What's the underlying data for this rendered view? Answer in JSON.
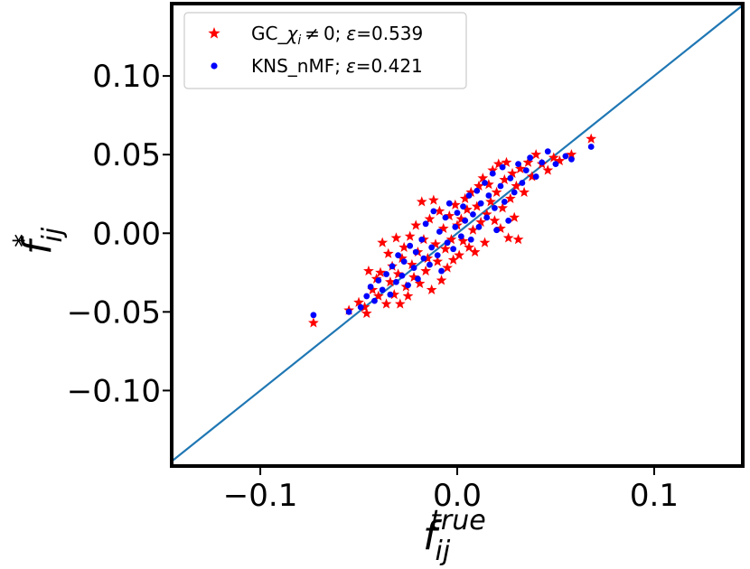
{
  "chart_data": {
    "type": "scatter",
    "xlabel": {
      "base": "f",
      "sub": "ij",
      "sup": "true"
    },
    "ylabel": {
      "base": "f",
      "sub": "ij",
      "sup": "*"
    },
    "xlim": [
      -0.145,
      0.145
    ],
    "ylim": [
      -0.148,
      0.146
    ],
    "x_ticks": [
      -0.1,
      0.0,
      0.1
    ],
    "x_tick_labels": [
      "−0.1",
      "0.0",
      "0.1"
    ],
    "y_ticks": [
      0.1,
      0.05,
      0.0,
      -0.05,
      -0.1
    ],
    "y_tick_labels": [
      "0.10",
      "0.05",
      "0.00",
      "−0.05",
      "−0.10"
    ],
    "legend_position": "top-left",
    "reference_line": {
      "slope": 1,
      "intercept": 0,
      "color": "#1f77b4"
    },
    "series": [
      {
        "name": "GC_χ_i ≠ 0; ε=0.539",
        "label_parts": {
          "prefix": "GC_",
          "chi": "χ",
          "sub": "i",
          "rest": " ≠ 0;",
          "eps": "ε",
          "value": "=0.539"
        },
        "marker": "star",
        "color": "#ff0000",
        "points": [
          [
            -0.073,
            -0.057
          ],
          [
            -0.055,
            -0.049
          ],
          [
            -0.05,
            -0.044
          ],
          [
            -0.047,
            -0.047
          ],
          [
            -0.046,
            -0.051
          ],
          [
            -0.045,
            -0.024
          ],
          [
            -0.043,
            -0.036
          ],
          [
            -0.041,
            -0.029
          ],
          [
            -0.04,
            -0.04
          ],
          [
            -0.039,
            -0.025
          ],
          [
            -0.038,
            -0.006
          ],
          [
            -0.036,
            -0.045
          ],
          [
            -0.035,
            -0.013
          ],
          [
            -0.034,
            -0.031
          ],
          [
            -0.033,
            -0.021
          ],
          [
            -0.032,
            -0.039
          ],
          [
            -0.031,
            -0.003
          ],
          [
            -0.03,
            -0.026
          ],
          [
            -0.029,
            -0.045
          ],
          [
            -0.028,
            -0.016
          ],
          [
            -0.027,
            -0.009
          ],
          [
            -0.026,
            -0.034
          ],
          [
            -0.025,
            -0.04
          ],
          [
            -0.024,
            -0.002
          ],
          [
            -0.023,
            -0.02
          ],
          [
            -0.022,
            -0.028
          ],
          [
            -0.021,
            0.005
          ],
          [
            -0.02,
            -0.012
          ],
          [
            -0.019,
            -0.032
          ],
          [
            -0.018,
            0.02
          ],
          [
            -0.017,
            -0.004
          ],
          [
            -0.016,
            -0.024
          ],
          [
            -0.015,
            -0.016
          ],
          [
            -0.014,
            0.009
          ],
          [
            -0.013,
            -0.036
          ],
          [
            -0.012,
            0.021
          ],
          [
            -0.011,
            -0.007
          ],
          [
            -0.01,
            -0.018
          ],
          [
            -0.009,
            0.014
          ],
          [
            -0.008,
            -0.03
          ],
          [
            -0.007,
            0.003
          ],
          [
            -0.006,
            -0.01
          ],
          [
            -0.005,
            -0.022
          ],
          [
            -0.004,
            0.011
          ],
          [
            -0.003,
            -0.004
          ],
          [
            -0.002,
            -0.017
          ],
          [
            -0.001,
            0.018
          ],
          [
            0.0,
            0.005
          ],
          [
            0.001,
            -0.014
          ],
          [
            0.002,
            0.009
          ],
          [
            0.003,
            -0.005
          ],
          [
            0.004,
            0.022
          ],
          [
            0.005,
            0.015
          ],
          [
            0.006,
            -0.009
          ],
          [
            0.007,
            0.026
          ],
          [
            0.008,
            0.002
          ],
          [
            0.009,
            -0.012
          ],
          [
            0.01,
            0.017
          ],
          [
            0.011,
            0.03
          ],
          [
            0.012,
            0.007
          ],
          [
            0.013,
            0.035
          ],
          [
            0.014,
            -0.006
          ],
          [
            0.015,
            0.012
          ],
          [
            0.016,
            0.031
          ],
          [
            0.017,
            0.02
          ],
          [
            0.018,
            0.04
          ],
          [
            0.019,
            0.008
          ],
          [
            0.02,
            0.026
          ],
          [
            0.021,
            0.044
          ],
          [
            0.022,
            0.003
          ],
          [
            0.023,
            0.016
          ],
          [
            0.024,
            0.034
          ],
          [
            0.025,
            0.045
          ],
          [
            0.026,
            -0.003
          ],
          [
            0.027,
            0.022
          ],
          [
            0.028,
            0.038
          ],
          [
            0.029,
            0.01
          ],
          [
            0.03,
            0.03
          ],
          [
            0.031,
            -0.004
          ],
          [
            0.032,
            0.041
          ],
          [
            0.034,
            0.026
          ],
          [
            0.036,
            0.045
          ],
          [
            0.038,
            0.036
          ],
          [
            0.04,
            0.05
          ],
          [
            0.043,
            0.044
          ],
          [
            0.046,
            0.04
          ],
          [
            0.049,
            0.048
          ],
          [
            0.052,
            0.046
          ],
          [
            0.058,
            0.05
          ],
          [
            0.068,
            0.06
          ]
        ]
      },
      {
        "name": "KNS_nMF; ε=0.421",
        "label_parts": {
          "prefix": "KNS_nMF;",
          "eps": "ε",
          "value": "=0.421"
        },
        "marker": "circle",
        "color": "#0000ff",
        "points": [
          [
            -0.073,
            -0.052
          ],
          [
            -0.055,
            -0.05
          ],
          [
            -0.049,
            -0.047
          ],
          [
            -0.046,
            -0.04
          ],
          [
            -0.044,
            -0.034
          ],
          [
            -0.042,
            -0.043
          ],
          [
            -0.04,
            -0.03
          ],
          [
            -0.038,
            -0.036
          ],
          [
            -0.036,
            -0.026
          ],
          [
            -0.034,
            -0.039
          ],
          [
            -0.033,
            -0.021
          ],
          [
            -0.031,
            -0.031
          ],
          [
            -0.03,
            -0.014
          ],
          [
            -0.028,
            -0.027
          ],
          [
            -0.027,
            -0.018
          ],
          [
            -0.025,
            -0.033
          ],
          [
            -0.024,
            -0.008
          ],
          [
            -0.022,
            -0.022
          ],
          [
            -0.021,
            -0.012
          ],
          [
            -0.02,
            -0.029
          ],
          [
            -0.018,
            -0.004
          ],
          [
            -0.017,
            -0.016
          ],
          [
            -0.016,
            0.006
          ],
          [
            -0.014,
            -0.02
          ],
          [
            -0.013,
            -0.009
          ],
          [
            -0.012,
            0.014
          ],
          [
            -0.01,
            -0.014
          ],
          [
            -0.009,
            0.001
          ],
          [
            -0.008,
            -0.024
          ],
          [
            -0.006,
            0.01
          ],
          [
            -0.005,
            -0.006
          ],
          [
            -0.004,
            0.019
          ],
          [
            -0.002,
            -0.01
          ],
          [
            -0.001,
            0.004
          ],
          [
            0.0,
            0.013
          ],
          [
            0.002,
            -0.002
          ],
          [
            0.003,
            0.017
          ],
          [
            0.004,
            0.008
          ],
          [
            0.006,
            0.024
          ],
          [
            0.007,
            -0.004
          ],
          [
            0.008,
            0.012
          ],
          [
            0.01,
            0.027
          ],
          [
            0.011,
            0.004
          ],
          [
            0.012,
            0.019
          ],
          [
            0.014,
            0.032
          ],
          [
            0.015,
            0.01
          ],
          [
            0.016,
            0.024
          ],
          [
            0.018,
            0.038
          ],
          [
            0.019,
            0.016
          ],
          [
            0.02,
            0.002
          ],
          [
            0.022,
            0.03
          ],
          [
            0.023,
            0.042
          ],
          [
            0.024,
            0.02
          ],
          [
            0.026,
            0.008
          ],
          [
            0.027,
            0.035
          ],
          [
            0.029,
            0.026
          ],
          [
            0.031,
            0.044
          ],
          [
            0.033,
            0.032
          ],
          [
            0.035,
            0.04
          ],
          [
            0.037,
            0.048
          ],
          [
            0.04,
            0.036
          ],
          [
            0.043,
            0.045
          ],
          [
            0.046,
            0.052
          ],
          [
            0.05,
            0.044
          ],
          [
            0.055,
            0.049
          ],
          [
            0.058,
            0.047
          ],
          [
            0.068,
            0.055
          ]
        ]
      }
    ]
  }
}
